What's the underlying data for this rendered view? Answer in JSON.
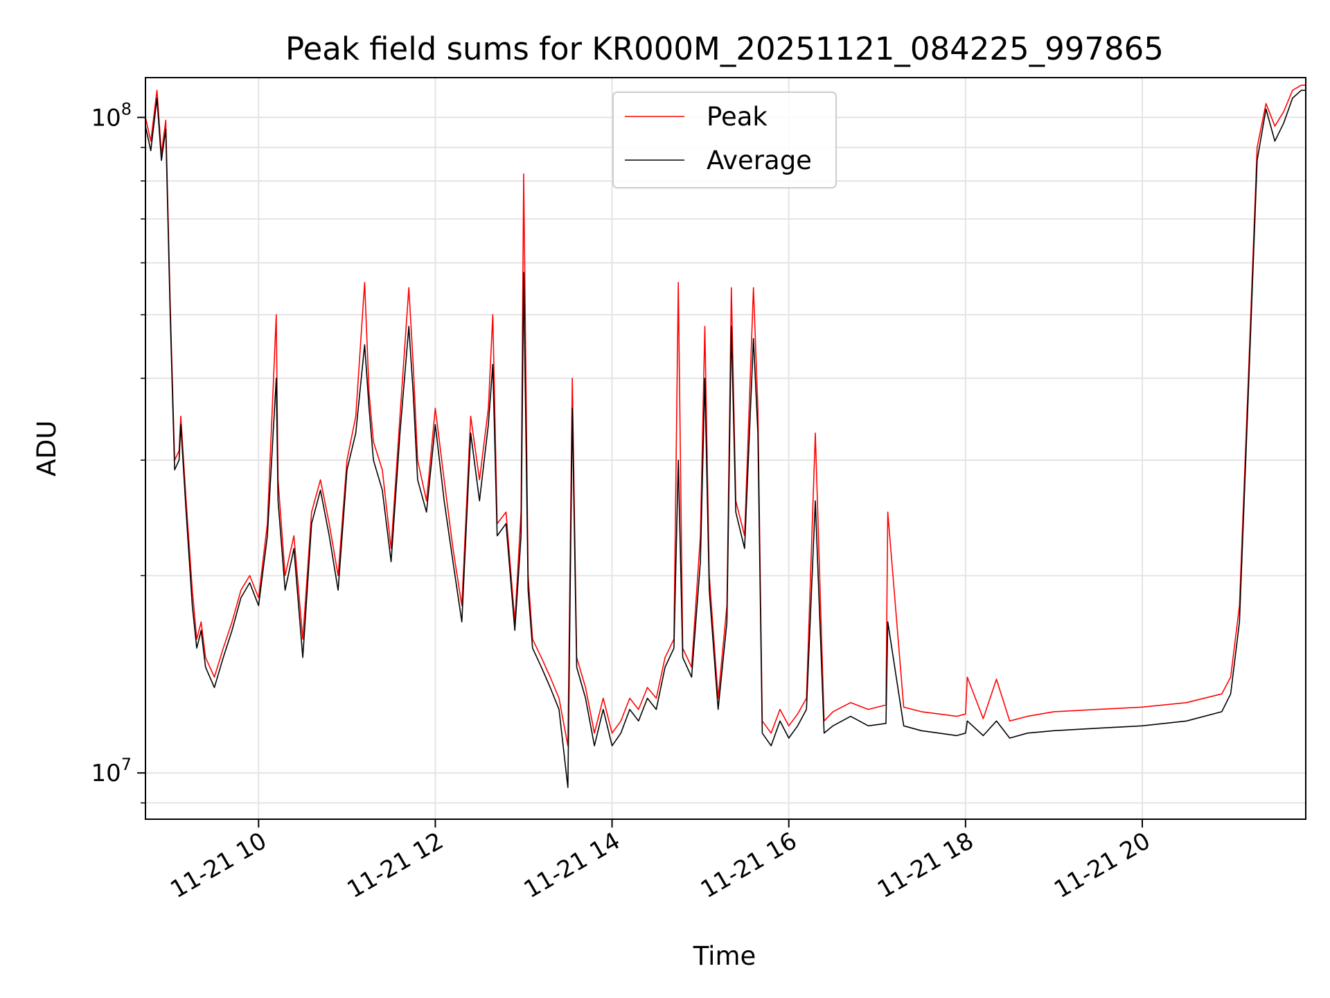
{
  "chart_data": {
    "type": "line",
    "title": "Peak field sums for KR000M_20251121_084225_997865",
    "xlabel": "Time",
    "ylabel": "ADU",
    "yscale": "log",
    "xlim_hours": [
      8.72,
      21.85
    ],
    "ylim": [
      8500000,
      115000000
    ],
    "x_ticks": [
      {
        "hour": 10,
        "label": "11-21 10"
      },
      {
        "hour": 12,
        "label": "11-21 12"
      },
      {
        "hour": 14,
        "label": "11-21 14"
      },
      {
        "hour": 16,
        "label": "11-21 16"
      },
      {
        "hour": 18,
        "label": "11-21 18"
      },
      {
        "hour": 20,
        "label": "11-21 20"
      }
    ],
    "y_ticks": [
      {
        "value": 10000000,
        "base": "10",
        "exp": "7"
      },
      {
        "value": 100000000,
        "base": "10",
        "exp": "8"
      }
    ],
    "grid": true,
    "legend_position": "top-center",
    "colors": {
      "peak": "#ff0000",
      "average": "#000000",
      "grid": "#e4e4e4"
    },
    "series": [
      {
        "name": "Peak",
        "color": "#ff0000",
        "x_hours": [
          8.72,
          8.78,
          8.85,
          8.9,
          8.95,
          9.0,
          9.05,
          9.1,
          9.12,
          9.18,
          9.25,
          9.3,
          9.35,
          9.4,
          9.5,
          9.6,
          9.7,
          9.8,
          9.9,
          10.0,
          10.1,
          10.2,
          10.22,
          10.3,
          10.4,
          10.5,
          10.6,
          10.7,
          10.8,
          10.9,
          11.0,
          11.1,
          11.2,
          11.25,
          11.3,
          11.4,
          11.5,
          11.6,
          11.7,
          11.75,
          11.8,
          11.9,
          12.0,
          12.1,
          12.2,
          12.3,
          12.4,
          12.5,
          12.6,
          12.65,
          12.7,
          12.8,
          12.9,
          12.97,
          13.0,
          13.05,
          13.1,
          13.2,
          13.3,
          13.4,
          13.5,
          13.55,
          13.6,
          13.7,
          13.8,
          13.9,
          14.0,
          14.1,
          14.2,
          14.3,
          14.4,
          14.5,
          14.6,
          14.7,
          14.75,
          14.8,
          14.9,
          15.0,
          15.05,
          15.1,
          15.2,
          15.3,
          15.35,
          15.4,
          15.5,
          15.6,
          15.65,
          15.7,
          15.8,
          15.9,
          16.0,
          16.1,
          16.2,
          16.3,
          16.4,
          16.5,
          16.7,
          16.9,
          17.1,
          17.12,
          17.3,
          17.5,
          17.7,
          17.9,
          18.0,
          18.02,
          18.2,
          18.35,
          18.5,
          18.7,
          19.0,
          19.5,
          20.0,
          20.5,
          20.9,
          21.0,
          21.1,
          21.2,
          21.3,
          21.4,
          21.5,
          21.6,
          21.7,
          21.8,
          21.85
        ],
        "values": [
          100000000,
          92000000,
          110000000,
          88000000,
          99000000,
          52000000,
          30000000,
          31000000,
          35000000,
          26000000,
          19000000,
          16000000,
          17000000,
          15000000,
          14000000,
          15500000,
          17000000,
          19000000,
          20000000,
          18500000,
          24000000,
          50000000,
          28000000,
          20000000,
          23000000,
          16000000,
          25000000,
          28000000,
          24000000,
          20000000,
          30000000,
          35000000,
          56000000,
          38000000,
          32000000,
          29000000,
          22000000,
          35000000,
          55000000,
          42000000,
          30000000,
          26000000,
          36000000,
          28000000,
          22000000,
          18000000,
          35000000,
          28000000,
          36000000,
          50000000,
          24000000,
          25000000,
          17000000,
          25000000,
          82000000,
          20000000,
          16000000,
          15000000,
          14000000,
          13000000,
          11000000,
          40000000,
          15000000,
          13500000,
          11500000,
          13000000,
          11500000,
          12000000,
          13000000,
          12500000,
          13500000,
          13000000,
          15000000,
          16000000,
          56000000,
          15500000,
          14500000,
          23000000,
          48000000,
          20000000,
          13000000,
          18000000,
          55000000,
          26000000,
          23000000,
          55000000,
          36000000,
          12000000,
          11500000,
          12500000,
          11800000,
          12300000,
          13000000,
          33000000,
          12000000,
          12400000,
          12800000,
          12500000,
          12700000,
          25000000,
          12600000,
          12400000,
          12300000,
          12200000,
          12300000,
          14000000,
          12100000,
          13900000,
          12000000,
          12200000,
          12400000,
          12500000,
          12600000,
          12800000,
          13200000,
          14000000,
          18000000,
          40000000,
          90000000,
          105000000,
          97000000,
          102000000,
          110000000,
          112000000,
          112000000
        ]
      },
      {
        "name": "Average",
        "color": "#000000",
        "x_hours": [
          8.72,
          8.78,
          8.85,
          8.9,
          8.95,
          9.0,
          9.05,
          9.1,
          9.12,
          9.18,
          9.25,
          9.3,
          9.35,
          9.4,
          9.5,
          9.6,
          9.7,
          9.8,
          9.9,
          10.0,
          10.1,
          10.2,
          10.22,
          10.3,
          10.4,
          10.5,
          10.6,
          10.7,
          10.8,
          10.9,
          11.0,
          11.1,
          11.2,
          11.25,
          11.3,
          11.4,
          11.5,
          11.6,
          11.7,
          11.75,
          11.8,
          11.9,
          12.0,
          12.1,
          12.2,
          12.3,
          12.4,
          12.5,
          12.6,
          12.65,
          12.7,
          12.8,
          12.9,
          12.97,
          13.0,
          13.05,
          13.1,
          13.2,
          13.3,
          13.4,
          13.5,
          13.55,
          13.6,
          13.7,
          13.8,
          13.9,
          14.0,
          14.1,
          14.2,
          14.3,
          14.4,
          14.5,
          14.6,
          14.7,
          14.75,
          14.8,
          14.9,
          15.0,
          15.05,
          15.1,
          15.2,
          15.3,
          15.35,
          15.4,
          15.5,
          15.6,
          15.65,
          15.7,
          15.8,
          15.9,
          16.0,
          16.1,
          16.2,
          16.3,
          16.4,
          16.5,
          16.7,
          16.9,
          17.1,
          17.12,
          17.3,
          17.5,
          17.7,
          17.9,
          18.0,
          18.02,
          18.2,
          18.35,
          18.5,
          18.7,
          19.0,
          19.5,
          20.0,
          20.5,
          20.9,
          21.0,
          21.1,
          21.2,
          21.3,
          21.4,
          21.5,
          21.6,
          21.7,
          21.8,
          21.85
        ],
        "values": [
          97000000,
          89000000,
          107000000,
          86000000,
          96000000,
          50000000,
          29000000,
          30000000,
          34000000,
          25000000,
          18000000,
          15500000,
          16500000,
          14500000,
          13500000,
          15000000,
          16500000,
          18500000,
          19500000,
          18000000,
          23000000,
          40000000,
          26000000,
          19000000,
          22000000,
          15000000,
          24000000,
          27000000,
          23000000,
          19000000,
          29000000,
          33000000,
          45000000,
          36000000,
          30000000,
          27000000,
          21000000,
          33000000,
          48000000,
          38000000,
          28000000,
          25000000,
          34000000,
          26000000,
          21000000,
          17000000,
          33000000,
          26000000,
          34000000,
          42000000,
          23000000,
          24000000,
          16500000,
          23000000,
          58000000,
          19000000,
          15500000,
          14500000,
          13500000,
          12500000,
          9500000,
          36000000,
          14500000,
          13000000,
          11000000,
          12500000,
          11000000,
          11500000,
          12500000,
          12000000,
          13000000,
          12500000,
          14500000,
          15500000,
          30000000,
          15000000,
          14000000,
          21000000,
          40000000,
          19000000,
          12500000,
          17000000,
          48000000,
          25000000,
          22000000,
          46000000,
          33000000,
          11500000,
          11000000,
          12000000,
          11300000,
          11800000,
          12500000,
          26000000,
          11500000,
          11800000,
          12200000,
          11800000,
          11900000,
          17000000,
          11800000,
          11600000,
          11500000,
          11400000,
          11500000,
          12000000,
          11400000,
          12000000,
          11300000,
          11500000,
          11600000,
          11700000,
          11800000,
          12000000,
          12400000,
          13200000,
          17000000,
          38000000,
          86000000,
          103000000,
          92000000,
          98000000,
          107000000,
          110000000,
          110000000
        ]
      }
    ]
  }
}
